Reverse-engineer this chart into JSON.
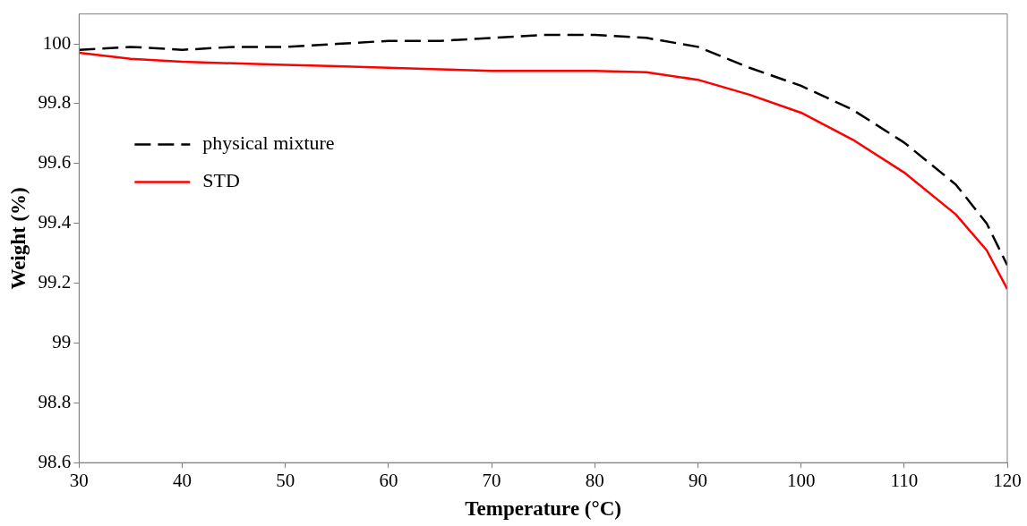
{
  "chart_data": {
    "type": "line",
    "xlabel": "Temperature (°C)",
    "ylabel": "Weight (%)",
    "xlim": [
      30,
      120
    ],
    "xticks": [
      30,
      40,
      50,
      60,
      70,
      80,
      90,
      100,
      110,
      120
    ],
    "ylim": [
      98.6,
      100.1
    ],
    "yticks": [
      98.6,
      98.8,
      99,
      99.2,
      99.4,
      99.6,
      99.8,
      100
    ],
    "grid": false,
    "legend": "left",
    "marker": "none",
    "series": [
      {
        "name": "physical mixture",
        "color": "#000000",
        "line_style": "dashed",
        "x": [
          30,
          35,
          40,
          45,
          50,
          55,
          60,
          65,
          70,
          75,
          80,
          85,
          90,
          95,
          100,
          105,
          110,
          115,
          118,
          120
        ],
        "values": [
          99.98,
          99.99,
          99.98,
          99.99,
          99.99,
          100,
          100.01,
          100.01,
          100.02,
          100.03,
          100.03,
          100.02,
          99.99,
          99.92,
          99.86,
          99.78,
          99.67,
          99.53,
          99.4,
          99.26
        ]
      },
      {
        "name": "STD",
        "color": "#ff0000",
        "line_style": "solid",
        "x": [
          30,
          35,
          40,
          45,
          50,
          55,
          60,
          65,
          70,
          75,
          80,
          85,
          90,
          95,
          100,
          105,
          110,
          115,
          118,
          120
        ],
        "values": [
          99.97,
          99.95,
          99.94,
          99.935,
          99.93,
          99.925,
          99.92,
          99.915,
          99.91,
          99.91,
          99.91,
          99.905,
          99.88,
          99.83,
          99.77,
          99.68,
          99.57,
          99.43,
          99.31,
          99.18
        ]
      }
    ]
  }
}
